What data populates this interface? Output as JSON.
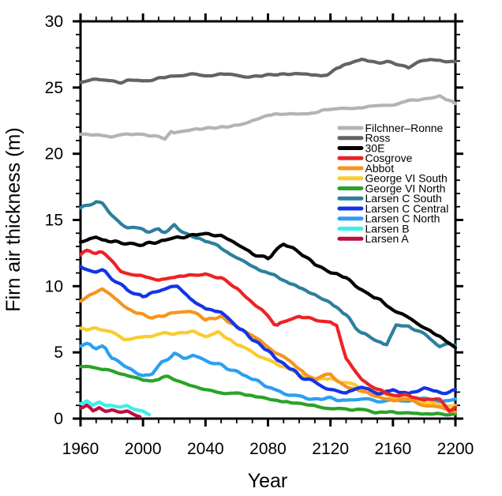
{
  "chart_data": {
    "type": "line",
    "title": "",
    "xlabel": "Year",
    "ylabel": "Firn air thickness (m)",
    "xlim": [
      1960,
      2200
    ],
    "ylim": [
      0,
      30
    ],
    "grid": false,
    "legend_position": "inside-upper-right",
    "x_major_ticks": [
      1960,
      2000,
      2040,
      2080,
      2120,
      2160,
      2200
    ],
    "x_tick_labels": [
      "1960",
      "2000",
      "2040",
      "2080",
      "2120",
      "2160",
      "2200"
    ],
    "x_minor_step": 10,
    "y_major_ticks": [
      0,
      5,
      10,
      15,
      20,
      25,
      30
    ],
    "y_tick_labels": [
      "0",
      "5",
      "10",
      "15",
      "20",
      "25",
      "30"
    ],
    "y_minor_step": 1,
    "frame_color": "#000000",
    "series": [
      {
        "name": "Filchner–Ronne",
        "color": "#b4b4b4",
        "z": 1,
        "wiggle": 0.1,
        "x": [
          1960,
          1970,
          1980,
          1990,
          2000,
          2010,
          2014,
          2018,
          2020,
          2030,
          2040,
          2050,
          2060,
          2070,
          2080,
          2090,
          2100,
          2110,
          2120,
          2130,
          2140,
          2150,
          2160,
          2170,
          2180,
          2190,
          2200
        ],
        "values": [
          21.5,
          21.4,
          21.3,
          21.5,
          21.4,
          21.3,
          21.1,
          21.7,
          21.6,
          21.8,
          21.9,
          22.0,
          22.1,
          22.5,
          22.9,
          23.0,
          23.0,
          23.1,
          23.4,
          23.4,
          23.5,
          23.6,
          23.7,
          24.0,
          24.1,
          24.3,
          23.8
        ]
      },
      {
        "name": "Ross",
        "color": "#636363",
        "z": 2,
        "wiggle": 0.12,
        "x": [
          1960,
          1970,
          1980,
          1985,
          1990,
          2000,
          2010,
          2020,
          2030,
          2040,
          2050,
          2060,
          2070,
          2080,
          2090,
          2100,
          2110,
          2118,
          2124,
          2130,
          2140,
          2150,
          2160,
          2170,
          2176,
          2180,
          2190,
          2200
        ],
        "values": [
          25.5,
          25.6,
          25.5,
          25.3,
          25.5,
          25.5,
          25.7,
          25.9,
          26.0,
          25.9,
          26.0,
          25.9,
          25.8,
          25.9,
          26.0,
          26.0,
          25.9,
          25.9,
          26.5,
          26.7,
          27.1,
          26.9,
          26.9,
          26.4,
          26.9,
          27.1,
          27.1,
          26.9
        ]
      },
      {
        "name": "30E",
        "color": "#000000",
        "z": 4,
        "wiggle": 0.18,
        "x": [
          1960,
          1970,
          1980,
          1990,
          2000,
          2010,
          2020,
          2030,
          2040,
          2050,
          2060,
          2070,
          2080,
          2090,
          2100,
          2110,
          2120,
          2130,
          2140,
          2150,
          2160,
          2170,
          2180,
          2190,
          2200
        ],
        "values": [
          13.4,
          13.6,
          13.4,
          13.3,
          13.2,
          13.4,
          13.6,
          13.8,
          14.0,
          13.9,
          13.2,
          12.4,
          12.1,
          13.1,
          12.6,
          11.6,
          11.1,
          10.6,
          9.7,
          9.0,
          8.3,
          7.6,
          6.9,
          6.2,
          5.4
        ]
      },
      {
        "name": "Cosgrove",
        "color": "#ee2224",
        "z": 12,
        "wiggle": 0.15,
        "x": [
          1960,
          1965,
          1970,
          1975,
          1980,
          1985,
          1990,
          2000,
          2010,
          2020,
          2030,
          2040,
          2050,
          2060,
          2070,
          2080,
          2085,
          2090,
          2100,
          2110,
          2120,
          2124,
          2130,
          2140,
          2150,
          2160,
          2170,
          2180,
          2190,
          2196,
          2200
        ],
        "values": [
          12.4,
          12.8,
          12.5,
          12.6,
          11.9,
          11.2,
          11.0,
          10.7,
          10.4,
          10.7,
          10.8,
          10.9,
          10.6,
          9.9,
          8.8,
          7.7,
          7.0,
          7.3,
          7.7,
          7.5,
          7.3,
          7.1,
          4.5,
          2.9,
          2.3,
          1.7,
          1.8,
          1.3,
          1.5,
          0.6,
          0.9
        ]
      },
      {
        "name": "Abbot",
        "color": "#f7941d",
        "z": 10,
        "wiggle": 0.15,
        "x": [
          1960,
          1965,
          1970,
          1974,
          1980,
          1990,
          2000,
          2005,
          2010,
          2020,
          2030,
          2040,
          2050,
          2060,
          2070,
          2080,
          2090,
          2100,
          2110,
          2120,
          2130,
          2140,
          2150,
          2160,
          2170,
          2180,
          2190,
          2200
        ],
        "values": [
          9.0,
          9.3,
          9.6,
          9.7,
          9.2,
          8.3,
          7.8,
          7.5,
          7.7,
          7.9,
          8.1,
          7.5,
          7.7,
          6.9,
          6.3,
          5.5,
          4.6,
          3.7,
          3.0,
          3.3,
          2.4,
          2.1,
          1.7,
          1.3,
          1.5,
          1.0,
          0.9,
          0.6
        ]
      },
      {
        "name": "George VI South",
        "color": "#fbcb2e",
        "z": 9,
        "wiggle": 0.15,
        "x": [
          1960,
          1970,
          1980,
          1988,
          2000,
          2010,
          2020,
          2030,
          2040,
          2048,
          2060,
          2070,
          2080,
          2090,
          2100,
          2110,
          2120,
          2130,
          2140,
          2150,
          2160,
          2170,
          2180,
          2190,
          2200
        ],
        "values": [
          6.7,
          6.9,
          6.5,
          5.9,
          6.1,
          6.4,
          6.4,
          6.6,
          6.2,
          6.5,
          5.6,
          5.0,
          4.4,
          3.9,
          3.4,
          2.9,
          3.1,
          2.7,
          2.3,
          2.0,
          1.6,
          1.4,
          1.2,
          1.1,
          0.9
        ]
      },
      {
        "name": "George VI North",
        "color": "#2aa32a",
        "z": 7,
        "wiggle": 0.1,
        "x": [
          1960,
          1970,
          1980,
          1990,
          2000,
          2010,
          2015,
          2020,
          2030,
          2040,
          2050,
          2060,
          2070,
          2080,
          2090,
          2100,
          2110,
          2120,
          2130,
          2140,
          2150,
          2160,
          2170,
          2180,
          2190,
          2200
        ],
        "values": [
          4.0,
          3.8,
          3.6,
          3.2,
          2.9,
          2.9,
          3.3,
          3.0,
          2.5,
          2.2,
          2.0,
          1.9,
          1.7,
          1.5,
          1.3,
          1.1,
          1.0,
          0.8,
          0.7,
          0.6,
          0.5,
          0.5,
          0.4,
          0.4,
          0.3,
          0.3
        ]
      },
      {
        "name": "Larsen C South",
        "color": "#2d7f9d",
        "z": 3,
        "wiggle": 0.2,
        "x": [
          1960,
          1965,
          1970,
          1975,
          1980,
          1990,
          2000,
          2005,
          2010,
          2015,
          2020,
          2025,
          2030,
          2040,
          2050,
          2060,
          2070,
          2080,
          2090,
          2100,
          2110,
          2120,
          2130,
          2140,
          2150,
          2156,
          2162,
          2170,
          2180,
          2190,
          2196,
          2200
        ],
        "values": [
          15.9,
          16.2,
          16.5,
          16.1,
          15.4,
          14.4,
          14.2,
          14.0,
          14.3,
          13.9,
          14.6,
          14.1,
          13.9,
          13.4,
          12.9,
          12.0,
          11.5,
          11.0,
          10.4,
          9.9,
          9.5,
          8.8,
          7.8,
          6.4,
          5.8,
          5.6,
          7.1,
          7.0,
          6.3,
          5.4,
          5.7,
          5.5
        ]
      },
      {
        "name": "Larsen C Central",
        "color": "#1334e6",
        "z": 11,
        "wiggle": 0.18,
        "x": [
          1960,
          1970,
          1975,
          1980,
          1990,
          2000,
          2010,
          2016,
          2022,
          2030,
          2040,
          2050,
          2060,
          2070,
          2080,
          2090,
          2100,
          2110,
          2120,
          2130,
          2140,
          2150,
          2160,
          2170,
          2180,
          2190,
          2200
        ],
        "values": [
          11.4,
          11.1,
          11.3,
          10.5,
          9.7,
          9.3,
          9.6,
          9.9,
          10.0,
          9.0,
          8.3,
          7.9,
          7.0,
          6.0,
          5.1,
          4.1,
          3.3,
          2.7,
          2.2,
          1.9,
          2.4,
          1.9,
          2.1,
          1.8,
          2.3,
          1.9,
          2.2
        ]
      },
      {
        "name": "Larsen C North",
        "color": "#29a0f2",
        "z": 8,
        "wiggle": 0.16,
        "x": [
          1960,
          1965,
          1970,
          1975,
          1980,
          1990,
          2000,
          2006,
          2012,
          2020,
          2026,
          2032,
          2040,
          2050,
          2060,
          2070,
          2080,
          2090,
          2100,
          2110,
          2120,
          2130,
          2140,
          2150,
          2160,
          2170,
          2180,
          2190,
          2200
        ],
        "values": [
          5.4,
          5.6,
          5.3,
          5.5,
          4.6,
          3.8,
          3.2,
          3.4,
          4.2,
          4.9,
          4.5,
          4.7,
          4.4,
          4.0,
          3.5,
          3.0,
          2.4,
          1.9,
          1.6,
          1.4,
          1.6,
          1.3,
          1.5,
          1.3,
          1.6,
          1.3,
          1.5,
          1.2,
          1.5
        ]
      },
      {
        "name": "Larsen B",
        "color": "#3af0ea",
        "z": 6,
        "wiggle": 0.15,
        "x": [
          1960,
          1964,
          1968,
          1972,
          1976,
          1980,
          1985,
          1990,
          1995,
          2000,
          2003
        ],
        "values": [
          1.1,
          1.4,
          0.9,
          1.2,
          0.9,
          1.0,
          0.8,
          0.9,
          0.6,
          0.6,
          0.4
        ]
      },
      {
        "name": "Larsen A",
        "color": "#bf0d3e",
        "z": 5,
        "wiggle": 0.12,
        "x": [
          1960,
          1964,
          1968,
          1972,
          1976,
          1980,
          1985,
          1990,
          1994,
          1998
        ],
        "values": [
          0.8,
          1.0,
          0.6,
          0.9,
          0.6,
          0.7,
          0.5,
          0.6,
          0.4,
          0.1
        ]
      }
    ]
  }
}
